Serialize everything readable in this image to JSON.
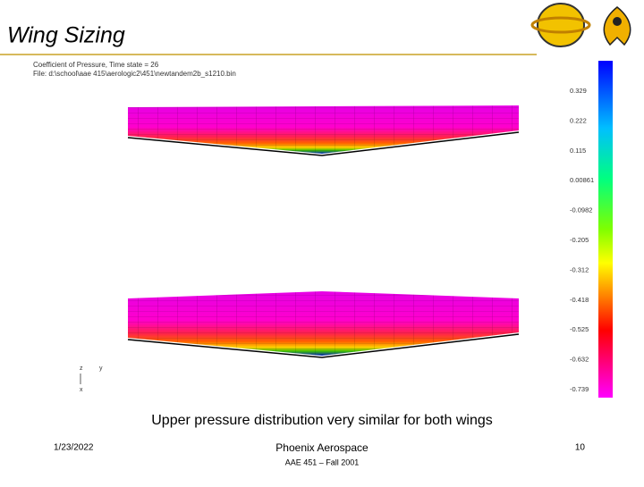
{
  "header": {
    "title": "Wing Sizing"
  },
  "figure": {
    "caption_lines": [
      "Coefficient of Pressure, Time state = 26",
      "File: d:\\school\\aae 415\\aerologic2\\451\\newtandem2b_s1210.bin"
    ],
    "colorbar_labels": [
      "0.329",
      "0.222",
      "0.115",
      "0.00861",
      "-0.0982",
      "-0.205",
      "-0.312",
      "-0.418",
      "-0.525",
      "-0.632",
      "-0.739"
    ],
    "axis_labels": [
      "z",
      "y",
      "x"
    ]
  },
  "caption": "Upper pressure distribution very similar for both wings",
  "footer": {
    "date": "1/23/2022",
    "company": "Phoenix Aerospace",
    "course": "AAE 451 – Fall 2001",
    "page": "10"
  }
}
